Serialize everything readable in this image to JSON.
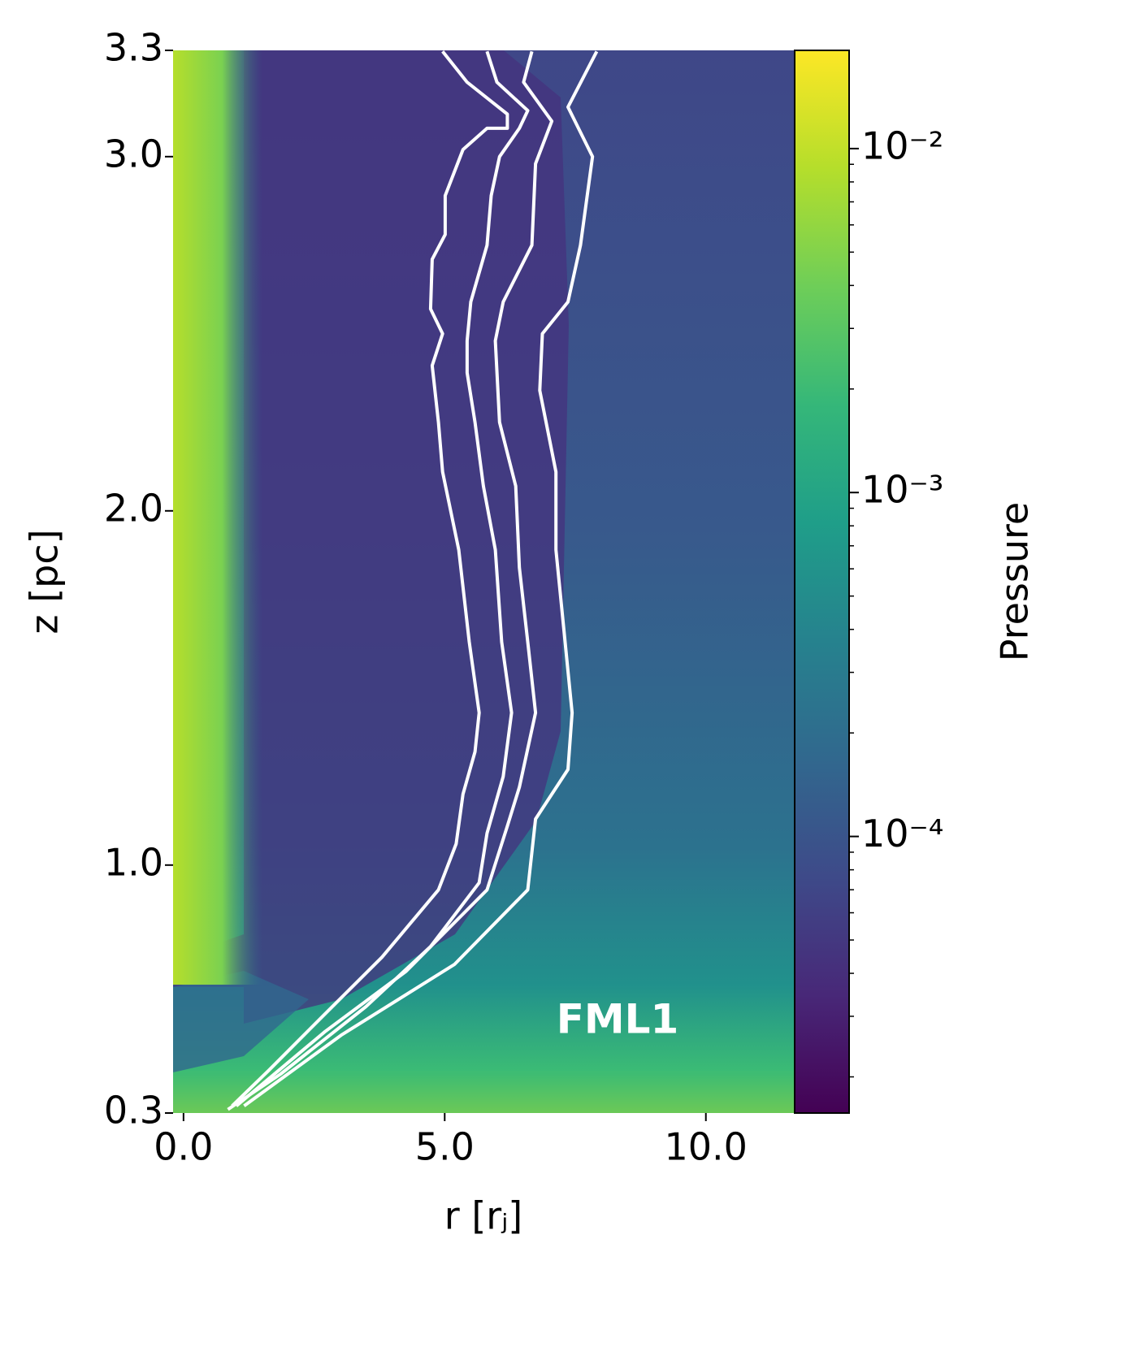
{
  "chart_data": {
    "type": "contour",
    "xlabel": "r [rⱼ]",
    "ylabel": "z [pc]",
    "annotation": "FML1",
    "xlim": [
      -0.2,
      11.7
    ],
    "ylim": [
      0.3,
      3.3
    ],
    "xticks": [
      {
        "value": 0,
        "label": "0.0"
      },
      {
        "value": 5,
        "label": "5.0"
      },
      {
        "value": 10,
        "label": "10.0"
      }
    ],
    "yticks": [
      0.3,
      {
        "value": 1,
        "label": "1.0"
      },
      {
        "value": 2,
        "label": "2.0"
      },
      {
        "value": 3,
        "label": "3.0"
      },
      3.3
    ],
    "series": [
      {
        "color": "#ffffff",
        "x": [
          4.96,
          5.43,
          6.2,
          6.2,
          5.81,
          5.35,
          5.01,
          5.01,
          4.76,
          4.73,
          4.96,
          4.76,
          4.88,
          4.96,
          5.27,
          5.47,
          5.66,
          5.58,
          5.35,
          5.22,
          4.88,
          3.8,
          2.71,
          1.63,
          0.93
        ],
        "values": [
          3.297,
          3.21,
          3.12,
          3.08,
          3.08,
          3.02,
          2.89,
          2.78,
          2.71,
          2.57,
          2.5,
          2.41,
          2.25,
          2.11,
          1.89,
          1.63,
          1.43,
          1.32,
          1.2,
          1.06,
          0.93,
          0.74,
          0.58,
          0.42,
          0.32
        ]
      },
      {
        "color": "#ffffff",
        "x": [
          5.81,
          6.0,
          6.59,
          6.43,
          6.05,
          5.89,
          5.81,
          5.5,
          5.43,
          5.43,
          5.58,
          5.74,
          5.97,
          6.09,
          6.28,
          6.12,
          5.81,
          5.66,
          4.73,
          3.49,
          1.86,
          0.85
        ],
        "values": [
          3.297,
          3.21,
          3.13,
          3.08,
          3.0,
          2.89,
          2.75,
          2.59,
          2.48,
          2.39,
          2.25,
          2.07,
          1.89,
          1.63,
          1.43,
          1.25,
          1.09,
          0.95,
          0.77,
          0.6,
          0.41,
          0.31
        ]
      },
      {
        "color": "#ffffff",
        "x": [
          6.67,
          6.51,
          7.05,
          6.74,
          6.67,
          6.12,
          5.97,
          6.05,
          6.36,
          6.43,
          6.59,
          6.74,
          6.43,
          6.2,
          5.81,
          4.26,
          2.71,
          1.01
        ],
        "values": [
          3.297,
          3.21,
          3.1,
          2.98,
          2.75,
          2.59,
          2.48,
          2.25,
          2.07,
          1.84,
          1.63,
          1.43,
          1.22,
          1.11,
          0.93,
          0.7,
          0.53,
          0.32
        ]
      },
      {
        "color": "#ffffff",
        "x": [
          7.91,
          7.36,
          7.83,
          7.6,
          7.36,
          6.87,
          6.82,
          7.13,
          7.13,
          7.21,
          7.44,
          7.36,
          6.74,
          6.59,
          5.19,
          3.02,
          1.16
        ],
        "values": [
          3.297,
          3.14,
          3.0,
          2.75,
          2.59,
          2.5,
          2.34,
          2.11,
          1.89,
          1.77,
          1.43,
          1.27,
          1.13,
          0.93,
          0.72,
          0.52,
          0.32
        ]
      }
    ],
    "colorbar": {
      "label": "Pressure",
      "scale": "log",
      "lim": [
        1.57e-05,
        0.0193
      ],
      "ticks": [
        {
          "value": 0.0001,
          "label": "10⁻⁴"
        },
        {
          "value": 0.001,
          "label": "10⁻³"
        },
        {
          "value": 0.01,
          "label": "10⁻²"
        }
      ],
      "minor_ticks": [
        2e-05,
        3e-05,
        4e-05,
        5e-05,
        6e-05,
        7e-05,
        8e-05,
        9e-05,
        0.0002,
        0.0003,
        0.0004,
        0.0005,
        0.0006,
        0.0007,
        0.0008,
        0.0009,
        0.002,
        0.003,
        0.004,
        0.005,
        0.006,
        0.007,
        0.008,
        0.009
      ],
      "colormap": [
        "#440154",
        "#482878",
        "#3e4a89",
        "#31688e",
        "#26828e",
        "#1f9e89",
        "#35b779",
        "#6ece58",
        "#b5de2b",
        "#fde725"
      ]
    }
  }
}
